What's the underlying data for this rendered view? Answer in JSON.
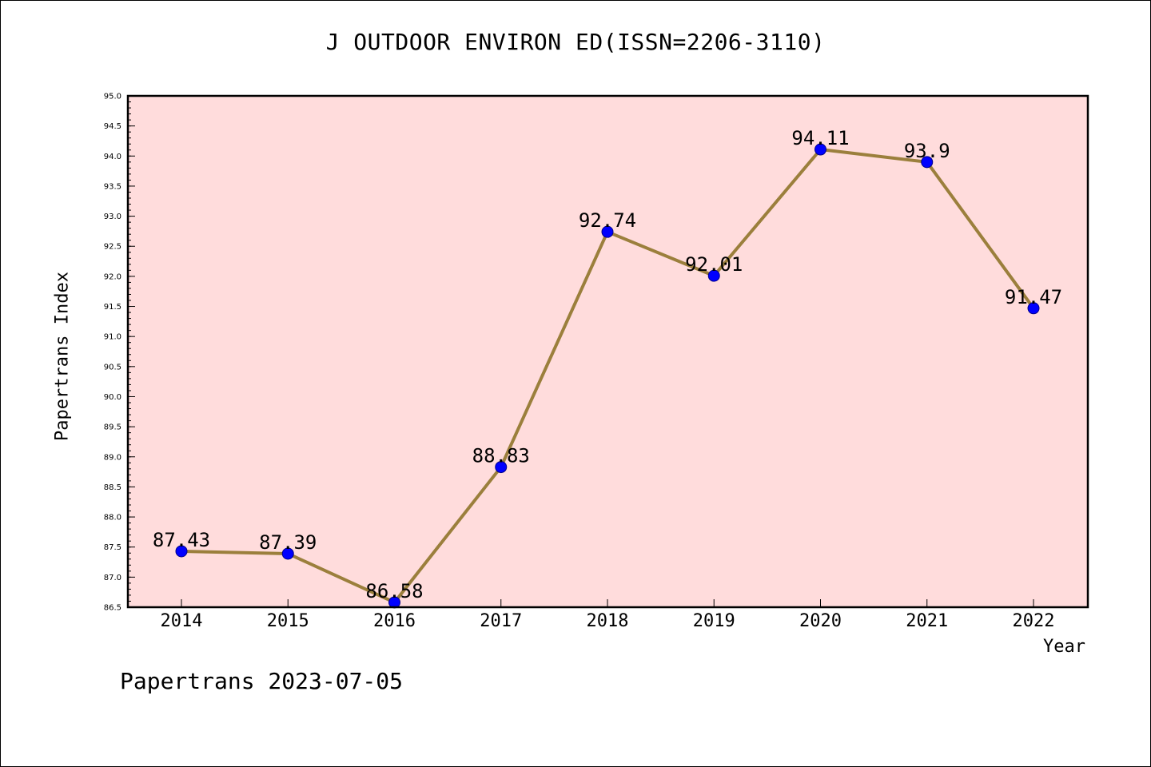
{
  "chart_data": {
    "type": "line",
    "title": "J OUTDOOR ENVIRON ED(ISSN=2206-3110)",
    "xlabel": "Year",
    "ylabel": "Papertrans Index",
    "categories": [
      "2014",
      "2015",
      "2016",
      "2017",
      "2018",
      "2019",
      "2020",
      "2021",
      "2022"
    ],
    "values": [
      87.43,
      87.39,
      86.58,
      88.83,
      92.74,
      92.01,
      94.11,
      93.9,
      91.47
    ],
    "data_labels": [
      "87.43",
      "87.39",
      "86.58",
      "88.83",
      "92.74",
      "92.01",
      "94.11",
      "93.9",
      "91.47"
    ],
    "ylim": [
      86.5,
      95.0
    ],
    "yticks": [
      "86.5",
      "87.0",
      "87.5",
      "88.0",
      "88.5",
      "89.0",
      "89.5",
      "90.0",
      "90.5",
      "91.0",
      "91.5",
      "92.0",
      "92.5",
      "93.0",
      "93.5",
      "94.0",
      "94.5",
      "95.0"
    ],
    "grid": false,
    "colors": {
      "plot_background": "#ffdcdc",
      "line": "#9b7f3c",
      "marker": "#0000ff",
      "marker_edge": "#00008b"
    }
  },
  "footer": "Papertrans 2023-07-05"
}
